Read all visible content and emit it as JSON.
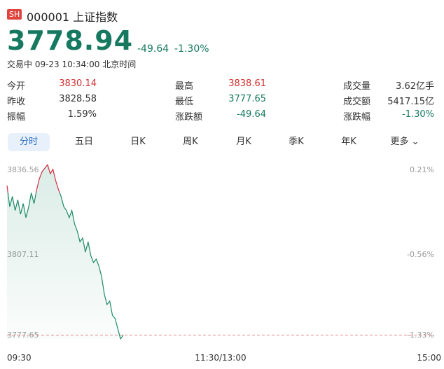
{
  "header": {
    "badge": "SH",
    "code_name": "000001 上证指数",
    "price": "3778.94",
    "change": "-49.64",
    "change_pct": "-1.30%",
    "status": "交易中 09-23 10:34:00 北京时间"
  },
  "stats": [
    [
      {
        "label": "今开",
        "value": "3830.14",
        "color": "#d23030"
      },
      {
        "label": "最高",
        "value": "3838.61",
        "color": "#d23030"
      },
      {
        "label": "成交量",
        "value": "3.62亿手",
        "color": "#333333"
      }
    ],
    [
      {
        "label": "昨收",
        "value": "3828.58",
        "color": "#333333"
      },
      {
        "label": "最低",
        "value": "3777.65",
        "color": "#16795f"
      },
      {
        "label": "成交额",
        "value": "5417.15亿",
        "color": "#333333"
      }
    ],
    [
      {
        "label": "振幅",
        "value": "1.59%",
        "color": "#333333"
      },
      {
        "label": "涨跌额",
        "value": "-49.64",
        "color": "#16795f"
      },
      {
        "label": "涨跌幅",
        "value": "-1.30%",
        "color": "#16795f"
      }
    ]
  ],
  "tabs": [
    "分时",
    "五日",
    "日K",
    "周K",
    "月K",
    "季K",
    "年K",
    "更多"
  ],
  "chart_data": {
    "type": "line",
    "up_color": "#d23040",
    "down_color": "#1d8a68",
    "values": [
      3830.96,
      3823.6,
      3827.2,
      3822.3,
      3826,
      3821,
      3824.7,
      3819.8,
      3823.5,
      3828.4,
      3824.7,
      3829.7,
      3833.4,
      3835.8,
      3837.0,
      3838.2,
      3835.1,
      3836.6,
      3832.7,
      3829.7,
      3827.2,
      3823.6,
      3822.3,
      3819.8,
      3822.3,
      3817.6,
      3815.1,
      3811.4,
      3812.7,
      3807.8,
      3811.4,
      3806.6,
      3804.2,
      3805.4,
      3803.0,
      3799.3,
      3793.2,
      3789.6,
      3790.8,
      3785.9,
      3784.7,
      3781.1,
      3777.65,
      3778.94
    ],
    "ylim": [
      3777.65,
      3836.56
    ],
    "yticks": [
      3836.56,
      3807.11,
      3777.65
    ],
    "y2lim": [
      -1.33,
      0.21
    ],
    "y2ticks": [
      {
        "value": 0.21,
        "label": "0.21%"
      },
      {
        "value": -0.56,
        "label": "-0.56%"
      },
      {
        "value": -1.33,
        "label": "-1.33%"
      }
    ],
    "x_labels": [
      "09:30",
      "11:30/13:00",
      "15:00"
    ]
  }
}
